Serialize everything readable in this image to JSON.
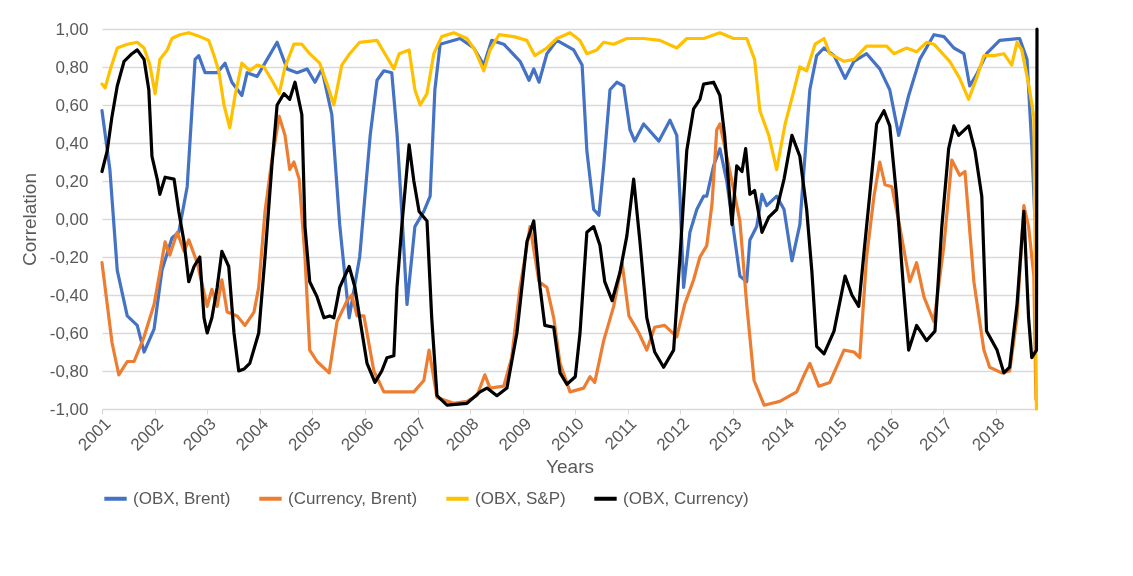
{
  "chart_data": {
    "type": "line",
    "xlabel": "Years",
    "ylabel": "Correlation",
    "xlim": [
      2001,
      2018.78
    ],
    "xticks": [
      2001,
      2002,
      2003,
      2004,
      2005,
      2006,
      2007,
      2008,
      2009,
      2010,
      2011,
      2012,
      2013,
      2014,
      2015,
      2016,
      2017,
      2018
    ],
    "ylim": [
      -1,
      1
    ],
    "yticks": [
      {
        "value": -1,
        "label": "-1,00"
      },
      {
        "value": -0.8,
        "label": "-0,80"
      },
      {
        "value": -0.6,
        "label": "-0,60"
      },
      {
        "value": -0.4,
        "label": "-0,40"
      },
      {
        "value": -0.2,
        "label": "-0,20"
      },
      {
        "value": 0,
        "label": "0,00"
      },
      {
        "value": 0.2,
        "label": "0,20"
      },
      {
        "value": 0.4,
        "label": "0,40"
      },
      {
        "value": 0.6,
        "label": "0,60"
      },
      {
        "value": 0.8,
        "label": "0,80"
      },
      {
        "value": 1,
        "label": "1,00"
      }
    ],
    "grid": "y",
    "legend": "bottom",
    "line_style": "solid",
    "marker": "none",
    "series": [
      {
        "name": "(OBX, Brent)",
        "color": "#4472c4",
        "x": [
          2001.0,
          2001.15,
          2001.29,
          2001.48,
          2001.67,
          2001.8,
          2001.99,
          2002.14,
          2002.33,
          2002.46,
          2002.62,
          2002.77,
          2002.84,
          2002.96,
          2003.19,
          2003.34,
          2003.47,
          2003.66,
          2003.76,
          2003.95,
          2004.14,
          2004.33,
          2004.52,
          2004.71,
          2004.9,
          2005.05,
          2005.18,
          2005.37,
          2005.52,
          2005.7,
          2005.9,
          2006.1,
          2006.23,
          2006.36,
          2006.51,
          2006.61,
          2006.7,
          2006.8,
          2006.95,
          2007.12,
          2007.24,
          2007.33,
          2007.43,
          2007.81,
          2008.07,
          2008.26,
          2008.41,
          2008.64,
          2008.95,
          2009.12,
          2009.21,
          2009.31,
          2009.46,
          2009.65,
          2009.97,
          2010.13,
          2010.22,
          2010.35,
          2010.45,
          2010.54,
          2010.66,
          2010.79,
          2010.92,
          2011.04,
          2011.13,
          2011.3,
          2011.59,
          2011.8,
          2011.93,
          2011.99,
          2012.06,
          2012.18,
          2012.31,
          2012.44,
          2012.5,
          2012.63,
          2012.75,
          2012.88,
          2013.13,
          2013.26,
          2013.32,
          2013.45,
          2013.55,
          2013.64,
          2013.83,
          2013.97,
          2014.12,
          2014.27,
          2014.37,
          2014.46,
          2014.59,
          2014.73,
          2014.92,
          2015.13,
          2015.3,
          2015.54,
          2015.79,
          2015.98,
          2016.15,
          2016.34,
          2016.55,
          2016.82,
          2017.01,
          2017.2,
          2017.39,
          2017.5,
          2017.63,
          2017.82,
          2018.07,
          2018.45,
          2018.59,
          2018.68,
          2018.74
        ],
        "values": [
          0.57,
          0.26,
          -0.27,
          -0.51,
          -0.56,
          -0.7,
          -0.58,
          -0.27,
          -0.1,
          -0.07,
          0.17,
          0.84,
          0.86,
          0.77,
          0.77,
          0.82,
          0.72,
          0.65,
          0.77,
          0.75,
          0.84,
          0.93,
          0.79,
          0.77,
          0.79,
          0.72,
          0.79,
          0.55,
          -0.03,
          -0.52,
          -0.2,
          0.44,
          0.73,
          0.78,
          0.77,
          0.45,
          0.04,
          -0.45,
          -0.04,
          0.04,
          0.12,
          0.68,
          0.92,
          0.95,
          0.9,
          0.81,
          0.94,
          0.92,
          0.83,
          0.73,
          0.79,
          0.72,
          0.87,
          0.94,
          0.89,
          0.81,
          0.36,
          0.05,
          0.02,
          0.28,
          0.68,
          0.72,
          0.7,
          0.47,
          0.41,
          0.5,
          0.41,
          0.52,
          0.44,
          0.12,
          -0.36,
          -0.07,
          0.05,
          0.12,
          0.12,
          0.28,
          0.37,
          0.2,
          -0.3,
          -0.33,
          -0.11,
          -0.04,
          0.13,
          0.07,
          0.12,
          0.05,
          -0.22,
          -0.03,
          0.34,
          0.68,
          0.86,
          0.9,
          0.86,
          0.74,
          0.83,
          0.87,
          0.79,
          0.68,
          0.44,
          0.65,
          0.84,
          0.97,
          0.96,
          0.9,
          0.87,
          0.7,
          0.76,
          0.87,
          0.94,
          0.95,
          0.84,
          0.39,
          0.0
        ]
      },
      {
        "name": "(Currency, Brent)",
        "color": "#ed7d31",
        "x": [
          2001.0,
          2001.1,
          2001.19,
          2001.32,
          2001.48,
          2001.61,
          2001.8,
          2001.99,
          2002.1,
          2002.2,
          2002.29,
          2002.43,
          2002.56,
          2002.65,
          2002.81,
          2003.0,
          2003.09,
          2003.19,
          2003.28,
          2003.38,
          2003.57,
          2003.72,
          2003.89,
          2003.98,
          2004.1,
          2004.23,
          2004.37,
          2004.48,
          2004.57,
          2004.65,
          2004.75,
          2004.86,
          2004.95,
          2005.09,
          2005.32,
          2005.47,
          2005.66,
          2005.75,
          2005.85,
          2005.98,
          2006.17,
          2006.36,
          2006.65,
          2006.93,
          2007.12,
          2007.22,
          2007.37,
          2007.69,
          2007.94,
          2008.13,
          2008.28,
          2008.38,
          2008.64,
          2008.79,
          2008.95,
          2009.14,
          2009.31,
          2009.46,
          2009.59,
          2009.71,
          2009.9,
          2010.16,
          2010.28,
          2010.37,
          2010.54,
          2010.73,
          2010.89,
          2011.02,
          2011.21,
          2011.36,
          2011.51,
          2011.7,
          2011.93,
          2012.08,
          2012.25,
          2012.37,
          2012.5,
          2012.6,
          2012.69,
          2012.75,
          2012.94,
          2013.13,
          2013.26,
          2013.4,
          2013.59,
          2013.89,
          2014.21,
          2014.37,
          2014.46,
          2014.63,
          2014.84,
          2015.11,
          2015.3,
          2015.41,
          2015.54,
          2015.68,
          2015.79,
          2015.89,
          2016.02,
          2016.17,
          2016.36,
          2016.49,
          2016.63,
          2016.82,
          2017.01,
          2017.16,
          2017.31,
          2017.41,
          2017.58,
          2017.77,
          2017.88,
          2018.11,
          2018.26,
          2018.4,
          2018.53,
          2018.62,
          2018.72,
          2018.76
        ],
        "values": [
          -0.23,
          -0.45,
          -0.65,
          -0.82,
          -0.75,
          -0.75,
          -0.62,
          -0.45,
          -0.28,
          -0.12,
          -0.19,
          -0.07,
          -0.17,
          -0.11,
          -0.23,
          -0.46,
          -0.37,
          -0.46,
          -0.32,
          -0.49,
          -0.51,
          -0.56,
          -0.49,
          -0.36,
          0.04,
          0.31,
          0.54,
          0.44,
          0.26,
          0.3,
          0.21,
          -0.2,
          -0.69,
          -0.75,
          -0.81,
          -0.54,
          -0.43,
          -0.4,
          -0.51,
          -0.51,
          -0.8,
          -0.91,
          -0.91,
          -0.91,
          -0.85,
          -0.69,
          -0.94,
          -0.97,
          -0.96,
          -0.93,
          -0.82,
          -0.89,
          -0.88,
          -0.73,
          -0.36,
          -0.04,
          -0.33,
          -0.36,
          -0.52,
          -0.76,
          -0.91,
          -0.89,
          -0.83,
          -0.86,
          -0.64,
          -0.46,
          -0.23,
          -0.51,
          -0.6,
          -0.69,
          -0.57,
          -0.56,
          -0.62,
          -0.45,
          -0.32,
          -0.2,
          -0.14,
          0.08,
          0.47,
          0.5,
          0.25,
          -0.01,
          -0.45,
          -0.85,
          -0.98,
          -0.96,
          -0.91,
          -0.81,
          -0.76,
          -0.88,
          -0.86,
          -0.69,
          -0.7,
          -0.73,
          -0.2,
          0.12,
          0.3,
          0.18,
          0.17,
          -0.04,
          -0.33,
          -0.23,
          -0.41,
          -0.54,
          -0.14,
          0.31,
          0.23,
          0.25,
          -0.33,
          -0.69,
          -0.78,
          -0.81,
          -0.8,
          -0.52,
          0.07,
          -0.04,
          -0.3,
          -0.95
        ]
      },
      {
        "name": "(OBX, S&P)",
        "color": "#ffc000",
        "x": [
          2001.0,
          2001.06,
          2001.15,
          2001.29,
          2001.48,
          2001.67,
          2001.8,
          2001.91,
          2002.01,
          2002.1,
          2002.24,
          2002.33,
          2002.48,
          2002.65,
          2002.86,
          2003.03,
          2003.13,
          2003.22,
          2003.32,
          2003.43,
          2003.53,
          2003.66,
          2003.81,
          2003.95,
          2004.08,
          2004.23,
          2004.37,
          2004.48,
          2004.65,
          2004.8,
          2004.95,
          2005.14,
          2005.28,
          2005.41,
          2005.56,
          2005.71,
          2005.9,
          2006.23,
          2006.38,
          2006.55,
          2006.65,
          2006.84,
          2006.95,
          2007.05,
          2007.18,
          2007.31,
          2007.46,
          2007.69,
          2007.94,
          2008.09,
          2008.26,
          2008.38,
          2008.55,
          2008.83,
          2009.08,
          2009.23,
          2009.46,
          2009.65,
          2009.9,
          2010.09,
          2010.22,
          2010.41,
          2010.54,
          2010.73,
          2010.98,
          2011.3,
          2011.61,
          2011.93,
          2012.12,
          2012.44,
          2012.75,
          2013.01,
          2013.26,
          2013.41,
          2013.51,
          2013.68,
          2013.83,
          2013.99,
          2014.16,
          2014.27,
          2014.4,
          2014.56,
          2014.73,
          2014.84,
          2015.11,
          2015.3,
          2015.54,
          2015.92,
          2016.06,
          2016.3,
          2016.49,
          2016.68,
          2016.82,
          2017.12,
          2017.31,
          2017.48,
          2017.63,
          2017.77,
          2017.96,
          2018.15,
          2018.3,
          2018.4,
          2018.49,
          2018.62,
          2018.72,
          2018.77
        ],
        "values": [
          0.71,
          0.69,
          0.78,
          0.9,
          0.92,
          0.93,
          0.9,
          0.81,
          0.66,
          0.84,
          0.89,
          0.95,
          0.97,
          0.98,
          0.96,
          0.94,
          0.86,
          0.78,
          0.6,
          0.48,
          0.65,
          0.82,
          0.78,
          0.81,
          0.8,
          0.73,
          0.66,
          0.8,
          0.92,
          0.92,
          0.87,
          0.82,
          0.71,
          0.6,
          0.81,
          0.87,
          0.93,
          0.94,
          0.87,
          0.79,
          0.87,
          0.89,
          0.68,
          0.6,
          0.66,
          0.87,
          0.96,
          0.98,
          0.95,
          0.89,
          0.78,
          0.89,
          0.97,
          0.96,
          0.94,
          0.86,
          0.9,
          0.95,
          0.98,
          0.94,
          0.87,
          0.89,
          0.93,
          0.92,
          0.95,
          0.95,
          0.94,
          0.9,
          0.95,
          0.95,
          0.98,
          0.95,
          0.95,
          0.84,
          0.57,
          0.44,
          0.26,
          0.5,
          0.68,
          0.8,
          0.78,
          0.92,
          0.95,
          0.87,
          0.83,
          0.84,
          0.91,
          0.91,
          0.87,
          0.9,
          0.88,
          0.93,
          0.92,
          0.83,
          0.74,
          0.63,
          0.74,
          0.86,
          0.86,
          0.87,
          0.81,
          0.93,
          0.89,
          0.71,
          0.54,
          -1.0
        ]
      },
      {
        "name": "(OBX, Currency)",
        "color": "#000000",
        "x": [
          2001.0,
          2001.1,
          2001.19,
          2001.29,
          2001.42,
          2001.57,
          2001.67,
          2001.8,
          2001.89,
          2001.95,
          2002.05,
          2002.1,
          2002.2,
          2002.37,
          2002.46,
          2002.56,
          2002.65,
          2002.75,
          2002.86,
          2002.94,
          2003.0,
          2003.09,
          2003.19,
          2003.28,
          2003.41,
          2003.51,
          2003.6,
          2003.7,
          2003.81,
          2003.98,
          2004.1,
          2004.23,
          2004.33,
          2004.46,
          2004.57,
          2004.67,
          2004.8,
          2004.86,
          2004.95,
          2005.09,
          2005.22,
          2005.33,
          2005.41,
          2005.52,
          2005.7,
          2005.81,
          2005.9,
          2006.04,
          2006.19,
          2006.32,
          2006.42,
          2006.55,
          2006.61,
          2006.7,
          2006.84,
          2006.93,
          2007.03,
          2007.18,
          2007.27,
          2007.37,
          2007.56,
          2007.94,
          2008.19,
          2008.32,
          2008.51,
          2008.7,
          2008.89,
          2009.08,
          2009.21,
          2009.33,
          2009.42,
          2009.59,
          2009.71,
          2009.84,
          2010.0,
          2010.09,
          2010.22,
          2010.35,
          2010.47,
          2010.56,
          2010.7,
          2010.85,
          2010.98,
          2011.11,
          2011.23,
          2011.36,
          2011.51,
          2011.68,
          2011.87,
          2011.99,
          2012.12,
          2012.25,
          2012.37,
          2012.44,
          2012.63,
          2012.75,
          2012.84,
          2012.98,
          2013.07,
          2013.17,
          2013.24,
          2013.32,
          2013.41,
          2013.55,
          2013.68,
          2013.83,
          2013.97,
          2014.12,
          2014.27,
          2014.4,
          2014.5,
          2014.59,
          2014.73,
          2014.92,
          2015.13,
          2015.26,
          2015.39,
          2015.51,
          2015.6,
          2015.73,
          2015.87,
          2015.98,
          2016.11,
          2016.24,
          2016.34,
          2016.49,
          2016.68,
          2016.84,
          2016.97,
          2017.1,
          2017.2,
          2017.29,
          2017.48,
          2017.6,
          2017.73,
          2017.82,
          2018.02,
          2018.15,
          2018.26,
          2018.4,
          2018.53,
          2018.62,
          2018.68,
          2018.77,
          2018.78
        ],
        "values": [
          0.25,
          0.36,
          0.54,
          0.7,
          0.83,
          0.87,
          0.89,
          0.84,
          0.68,
          0.33,
          0.21,
          0.13,
          0.22,
          0.21,
          0.04,
          -0.12,
          -0.33,
          -0.25,
          -0.2,
          -0.52,
          -0.6,
          -0.52,
          -0.36,
          -0.17,
          -0.25,
          -0.6,
          -0.8,
          -0.79,
          -0.76,
          -0.6,
          -0.2,
          0.28,
          0.6,
          0.66,
          0.63,
          0.72,
          0.55,
          -0.04,
          -0.33,
          -0.41,
          -0.52,
          -0.51,
          -0.52,
          -0.36,
          -0.25,
          -0.36,
          -0.52,
          -0.76,
          -0.86,
          -0.8,
          -0.73,
          -0.72,
          -0.36,
          -0.04,
          0.39,
          0.2,
          0.04,
          -0.01,
          -0.52,
          -0.93,
          -0.98,
          -0.97,
          -0.91,
          -0.89,
          -0.93,
          -0.89,
          -0.6,
          -0.12,
          -0.01,
          -0.36,
          -0.56,
          -0.57,
          -0.81,
          -0.87,
          -0.83,
          -0.6,
          -0.07,
          -0.04,
          -0.14,
          -0.33,
          -0.43,
          -0.28,
          -0.09,
          0.21,
          -0.12,
          -0.52,
          -0.7,
          -0.78,
          -0.69,
          -0.2,
          0.36,
          0.58,
          0.63,
          0.71,
          0.72,
          0.65,
          0.44,
          -0.03,
          0.28,
          0.25,
          0.37,
          0.13,
          0.15,
          -0.07,
          0.01,
          0.05,
          0.21,
          0.44,
          0.33,
          0.05,
          -0.28,
          -0.67,
          -0.71,
          -0.59,
          -0.3,
          -0.4,
          -0.46,
          -0.12,
          0.13,
          0.5,
          0.57,
          0.49,
          0.12,
          -0.36,
          -0.69,
          -0.56,
          -0.64,
          -0.59,
          -0.04,
          0.37,
          0.49,
          0.44,
          0.49,
          0.36,
          0.12,
          -0.59,
          -0.69,
          -0.81,
          -0.78,
          -0.45,
          0.04,
          -0.52,
          -0.73,
          -0.69,
          1.0
        ]
      }
    ]
  }
}
